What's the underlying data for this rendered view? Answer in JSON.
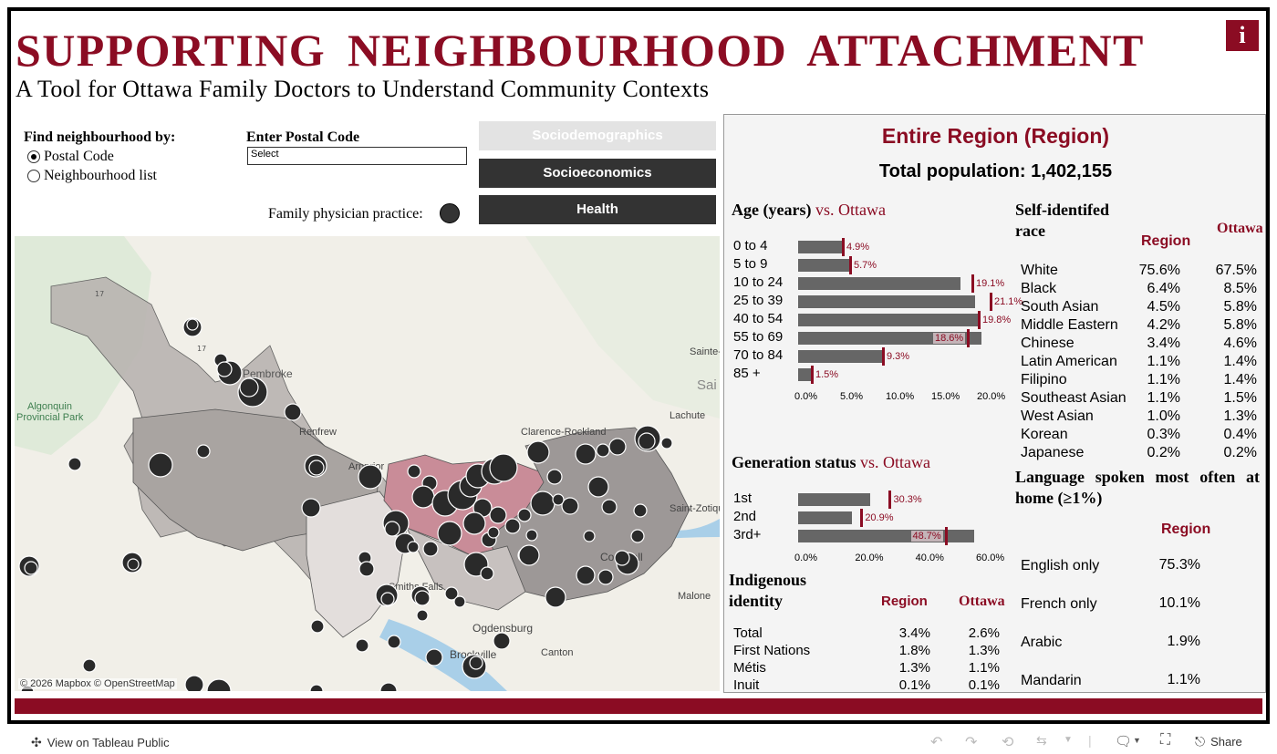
{
  "header": {
    "title": "SUPPORTING NEIGHBOURHOOD ATTACHMENT",
    "subtitle": "A Tool for Ottawa Family Doctors to Understand Community Contexts",
    "info_icon": "i"
  },
  "controls": {
    "find_label": "Find neighbourhood by:",
    "radio_postal": "Postal Code",
    "radio_list": "Neighbourhood list",
    "postal_label": "Enter Postal Code",
    "postal_value": "Select",
    "tabs": [
      "Sociodemographics",
      "Socioeconomics",
      "Health"
    ],
    "fp_label": "Family physician practice:"
  },
  "map": {
    "labels": [
      "Pembroke",
      "Algonquin Provincial Park",
      "Clarence-Rockland",
      "Lachute",
      "Saint-Zotique",
      "Cornwall",
      "Malone",
      "Ogdensburg",
      "Brockville",
      "Canton",
      "Smiths Falls",
      "Renfrew",
      "Arnprior",
      "Sainte-",
      "Sai"
    ],
    "highway_labels": [
      "17",
      "17"
    ],
    "attribution": "© 2026 Mapbox  © OpenStreetMap"
  },
  "panel": {
    "region_title": "Entire Region (Region)",
    "total_population": "Total population: 1,402,155",
    "age": {
      "title": "Age (years)",
      "vs": "vs. Ottawa",
      "rows": [
        {
          "label": "0 to 4",
          "region": 4.9,
          "ottawa": 4.9,
          "text": "4.9%"
        },
        {
          "label": "5 to 9",
          "region": 5.7,
          "ottawa": 5.7,
          "text": "5.7%"
        },
        {
          "label": "10 to 24",
          "region": 17.8,
          "ottawa": 19.1,
          "text": "19.1%"
        },
        {
          "label": "25 to 39",
          "region": 19.4,
          "ottawa": 21.1,
          "text": "21.1%"
        },
        {
          "label": "40 to 54",
          "region": 19.8,
          "ottawa": 19.8,
          "text": "19.8%"
        },
        {
          "label": "55 to 69",
          "region": 20.1,
          "ottawa": 18.6,
          "text": "18.6%"
        },
        {
          "label": "70 to 84",
          "region": 9.3,
          "ottawa": 9.3,
          "text": "9.3%"
        },
        {
          "label": "85 +",
          "region": 1.5,
          "ottawa": 1.5,
          "text": "1.5%"
        }
      ],
      "ticks": [
        "0.0%",
        "5.0%",
        "10.0%",
        "15.0%",
        "20.0%"
      ]
    },
    "generation": {
      "title": "Generation status",
      "vs": "vs. Ottawa",
      "rows": [
        {
          "label": "1st",
          "region": 23.8,
          "ottawa": 30.3,
          "text": "30.3%"
        },
        {
          "label": "2nd",
          "region": 17.9,
          "ottawa": 20.9,
          "text": "20.9%"
        },
        {
          "label": "3rd+",
          "region": 58.2,
          "ottawa": 48.7,
          "text": "48.7%"
        }
      ],
      "ticks": [
        "0.0%",
        "20.0%",
        "40.0%",
        "60.0%"
      ]
    },
    "indigenous": {
      "title": "Indigenous identity",
      "col_region": "Region",
      "col_ottawa": "Ottawa",
      "rows": [
        {
          "label": "Total",
          "region": "3.4%",
          "ottawa": "2.6%"
        },
        {
          "label": "First Nations",
          "region": "1.8%",
          "ottawa": "1.3%"
        },
        {
          "label": "Métis",
          "region": "1.3%",
          "ottawa": "1.1%"
        },
        {
          "label": "Inuit",
          "region": "0.1%",
          "ottawa": "0.1%"
        }
      ]
    },
    "race": {
      "title": "Self-identifed race",
      "col_region": "Region",
      "col_ottawa": "Ottawa",
      "rows": [
        {
          "label": "White",
          "region": "75.6%",
          "ottawa": "67.5%"
        },
        {
          "label": "Black",
          "region": "6.4%",
          "ottawa": "8.5%"
        },
        {
          "label": "South Asian",
          "region": "4.5%",
          "ottawa": "5.8%"
        },
        {
          "label": "Middle Eastern",
          "region": "4.2%",
          "ottawa": "5.8%"
        },
        {
          "label": "Chinese",
          "region": "3.4%",
          "ottawa": "4.6%"
        },
        {
          "label": "Latin American",
          "region": "1.1%",
          "ottawa": "1.4%"
        },
        {
          "label": "Filipino",
          "region": "1.1%",
          "ottawa": "1.4%"
        },
        {
          "label": "Southeast Asian",
          "region": "1.1%",
          "ottawa": "1.5%"
        },
        {
          "label": "West Asian",
          "region": "1.0%",
          "ottawa": "1.3%"
        },
        {
          "label": "Korean",
          "region": "0.3%",
          "ottawa": "0.4%"
        },
        {
          "label": "Japanese",
          "region": "0.2%",
          "ottawa": "0.2%"
        }
      ]
    },
    "language": {
      "title": "Language spoken most often at home (≥1%)",
      "col_region": "Region",
      "rows": [
        {
          "label": "English only",
          "region": "75.3%"
        },
        {
          "label": "French only",
          "region": "10.1%"
        },
        {
          "label": "Arabic",
          "region": "1.9%"
        },
        {
          "label": "Mandarin",
          "region": "1.1%"
        }
      ]
    }
  },
  "toolbar": {
    "view_label": "View on Tableau Public",
    "share_label": "Share"
  },
  "colors": {
    "brand": "#8b0c23",
    "bar": "#666666",
    "tab_active": "#333333",
    "tab_disabled": "#e3e3e3"
  }
}
